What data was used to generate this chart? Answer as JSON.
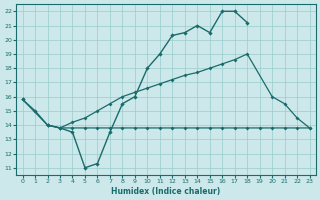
{
  "xlabel": "Humidex (Indice chaleur)",
  "background_color": "#cce8ea",
  "grid_color": "#99cccc",
  "line_color": "#1a6b6b",
  "xlim": [
    -0.5,
    23.5
  ],
  "ylim": [
    10.5,
    22.5
  ],
  "x_ticks": [
    0,
    1,
    2,
    3,
    4,
    5,
    6,
    7,
    8,
    9,
    10,
    11,
    12,
    13,
    14,
    15,
    16,
    17,
    18,
    19,
    20,
    21,
    22,
    23
  ],
  "y_ticks": [
    11,
    12,
    13,
    14,
    15,
    16,
    17,
    18,
    19,
    20,
    21,
    22
  ],
  "line_wavy_x": [
    0,
    1,
    2,
    3,
    4,
    5,
    6,
    7,
    8,
    9,
    10,
    11,
    12,
    13,
    14,
    15,
    16,
    17,
    18
  ],
  "line_wavy_y": [
    15.8,
    15.0,
    14.0,
    13.8,
    13.5,
    11.0,
    11.3,
    13.5,
    15.5,
    16.0,
    18.0,
    19.0,
    20.3,
    20.5,
    21.0,
    20.5,
    22.0,
    22.0,
    21.2
  ],
  "line_diag_x": [
    0,
    2,
    3,
    4,
    5,
    6,
    7,
    8,
    9,
    10,
    11,
    12,
    13,
    14,
    15,
    16,
    17,
    18,
    20,
    21,
    22,
    23
  ],
  "line_diag_y": [
    15.8,
    14.0,
    13.8,
    14.2,
    14.5,
    15.0,
    15.5,
    16.0,
    16.3,
    16.6,
    16.9,
    17.2,
    17.5,
    17.7,
    18.0,
    18.3,
    18.6,
    19.0,
    16.0,
    15.5,
    14.5,
    13.8
  ],
  "line_flat_x": [
    2,
    3,
    4,
    5,
    6,
    7,
    8,
    9,
    10,
    11,
    12,
    13,
    14,
    15,
    16,
    17,
    18,
    19,
    20,
    21,
    22,
    23
  ],
  "line_flat_y": [
    14.0,
    13.8,
    13.8,
    13.8,
    13.8,
    13.8,
    13.8,
    13.8,
    13.8,
    13.8,
    13.8,
    13.8,
    13.8,
    13.8,
    13.8,
    13.8,
    13.8,
    13.8,
    13.8,
    13.8,
    13.8,
    13.8
  ]
}
